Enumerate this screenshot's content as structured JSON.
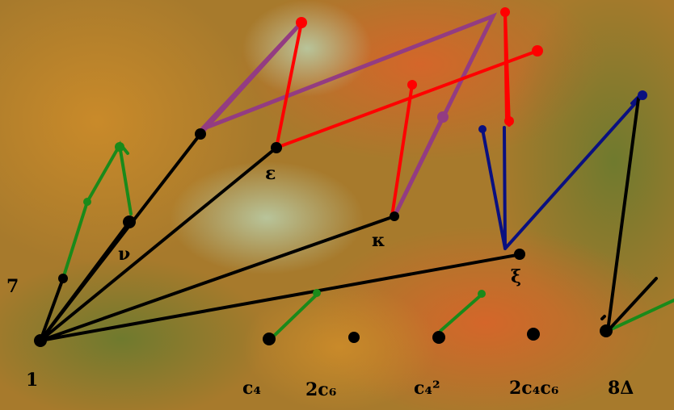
{
  "labels": {
    "origin": "1",
    "left": "7",
    "nu": "ν",
    "epsilon": "ε",
    "kappa": "κ",
    "xi": "ξ",
    "bottom": [
      "c₄",
      "2c₆",
      "c₄²",
      "2c₄c₆",
      "8Δ"
    ]
  }
}
